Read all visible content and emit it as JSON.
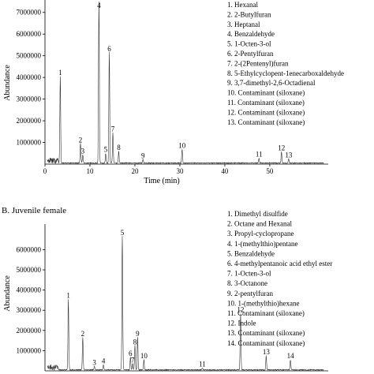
{
  "chart_data": [
    {
      "type": "line",
      "title": "",
      "xlabel": "Time (min)",
      "ylabel": "Abundance",
      "xlim": [
        0,
        63
      ],
      "ylim": [
        0,
        7500000
      ],
      "x_ticks": [
        "0",
        "10",
        "20",
        "30",
        "40",
        "50"
      ],
      "y_ticks": [
        "1000000",
        "2000000",
        "3000000",
        "4000000",
        "5000000",
        "6000000",
        "7000000"
      ],
      "legend": [
        "1. Hexanal",
        "2. 2-Butylfuran",
        "3. Heptanal",
        "4. Benzaldehyde",
        "5. 1-Octen-3-ol",
        "6. 2-Pentylfuran",
        "7. 2-(2Pentenyl)furan",
        "8. 5-Ethylcyclopent-1enecarboxaldehyde",
        "9. 3,7-dimethyl-2,6-Octadienal",
        "10. Contaminant (siloxane)",
        "11. Contaminant (siloxane)",
        "12. Contaminant (siloxane)",
        "13. Contaminant (siloxane)"
      ],
      "peaks": [
        {
          "label": "1",
          "x": 3.4,
          "y": 4000000
        },
        {
          "label": "2",
          "x": 7.9,
          "y": 900000
        },
        {
          "label": "3",
          "x": 8.4,
          "y": 380000
        },
        {
          "label": "4",
          "x": 12.0,
          "y": 7500000
        },
        {
          "label": "5",
          "x": 13.5,
          "y": 450000
        },
        {
          "label": "6",
          "x": 14.3,
          "y": 5100000
        },
        {
          "label": "7",
          "x": 15.1,
          "y": 1400000
        },
        {
          "label": "8",
          "x": 16.4,
          "y": 550000
        },
        {
          "label": "9",
          "x": 21.8,
          "y": 160000
        },
        {
          "label": "10",
          "x": 30.5,
          "y": 640000
        },
        {
          "label": "11",
          "x": 47.6,
          "y": 230000
        },
        {
          "label": "12",
          "x": 52.6,
          "y": 520000
        },
        {
          "label": "13",
          "x": 54.2,
          "y": 200000
        }
      ]
    },
    {
      "type": "line",
      "title": "B. Juvenile female",
      "xlabel": "",
      "ylabel": "Abundance",
      "xlim": [
        0,
        63
      ],
      "ylim": [
        0,
        7500000
      ],
      "x_ticks": [],
      "y_ticks": [
        "1000000",
        "2000000",
        "3000000",
        "4000000",
        "5000000",
        "6000000"
      ],
      "legend": [
        "1. Dimethyl disulfide",
        "2. Octane and Hexanal",
        "3. Propyl-cyclopropane",
        "4. 1-(methylthio)pentane",
        "5. Benzaldehyde",
        "6. 4-methylpentanoic acid ethyl ester",
        "7. 1-Octen-3-ol",
        "8. 3-Octanone",
        "9. 2-pentylfuran",
        "10. 1-(methylthio)hexane",
        "11. Contaminant (siloxane)",
        "12. Indole",
        "13. Contaminant (siloxane)",
        "14. Contaminant (siloxane)"
      ],
      "peaks": [
        {
          "label": "1",
          "x": 5.2,
          "y": 3500000
        },
        {
          "label": "2",
          "x": 8.4,
          "y": 1600000
        },
        {
          "label": "3",
          "x": 11.0,
          "y": 180000
        },
        {
          "label": "4",
          "x": 13.0,
          "y": 250000
        },
        {
          "label": "5",
          "x": 17.2,
          "y": 6600000
        },
        {
          "label": "6",
          "x": 19.0,
          "y": 620000
        },
        {
          "label": "7",
          "x": 19.5,
          "y": 300000
        },
        {
          "label": "8",
          "x": 20.0,
          "y": 1200000
        },
        {
          "label": "9",
          "x": 20.6,
          "y": 1600000
        },
        {
          "label": "10",
          "x": 22.0,
          "y": 500000
        },
        {
          "label": "11",
          "x": 35.0,
          "y": 90000
        },
        {
          "label": "12",
          "x": 43.5,
          "y": 2800000
        },
        {
          "label": "13",
          "x": 49.2,
          "y": 700000
        },
        {
          "label": "14",
          "x": 54.6,
          "y": 500000
        }
      ]
    }
  ]
}
